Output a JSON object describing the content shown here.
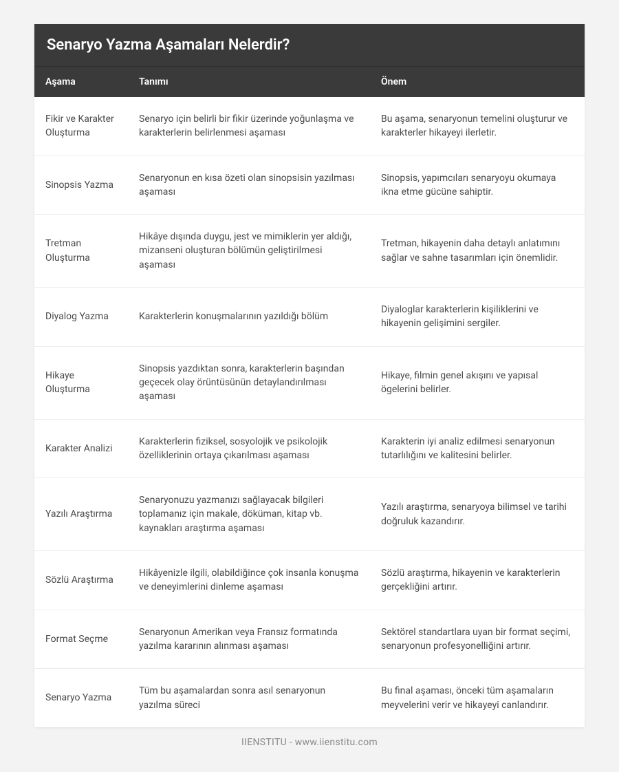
{
  "colors": {
    "page_bg": "#f3f3f3",
    "card_bg": "#ffffff",
    "header_bg": "#3a3a3a",
    "header_text": "#ffffff",
    "body_text": "#4a4a4a",
    "border": "#ececec",
    "footer_text": "#888888"
  },
  "typography": {
    "title_fontsize": 22,
    "header_fontsize": 14,
    "cell_fontsize": 14,
    "footer_fontsize": 14,
    "title_weight": 600,
    "header_weight": 600,
    "cell_weight": 400
  },
  "table": {
    "title": "Senaryo Yazma Aşamaları Nelerdir?",
    "type": "table",
    "columns": [
      {
        "key": "stage",
        "label": "Aşama",
        "width_pct": 17
      },
      {
        "key": "definition",
        "label": "Tanımı",
        "width_pct": 44
      },
      {
        "key": "importance",
        "label": "Önem",
        "width_pct": 39
      }
    ],
    "rows": [
      {
        "stage": "Fikir ve Karakter Oluşturma",
        "definition": "Senaryo için belirli bir fikir üzerinde yoğunlaşma ve karakterlerin belirlenmesi aşaması",
        "importance": "Bu aşama, senaryonun temelini oluşturur ve karakterler hikayeyi ilerletir."
      },
      {
        "stage": "Sinopsis Yazma",
        "definition": "Senaryonun en kısa özeti olan sinopsisin yazılması aşaması",
        "importance": "Sinopsis, yapımcıları senaryoyu okumaya ikna etme gücüne sahiptir."
      },
      {
        "stage": "Tretman Oluşturma",
        "definition": "Hikâye dışında duygu, jest ve mimiklerin yer aldığı, mizanseni oluşturan bölümün geliştirilmesi aşaması",
        "importance": "Tretman, hikayenin daha detaylı anlatımını sağlar ve sahne tasarımları için önemlidir."
      },
      {
        "stage": "Diyalog Yazma",
        "definition": "Karakterlerin konuşmalarının yazıldığı bölüm",
        "importance": "Diyaloglar karakterlerin kişiliklerini ve hikayenin gelişimini sergiler."
      },
      {
        "stage": "Hikaye Oluşturma",
        "definition": "Sinopsis yazdıktan sonra, karakterlerin başından geçecek olay örüntüsünün detaylandırılması aşaması",
        "importance": "Hikaye, filmin genel akışını ve yapısal ögelerini belirler."
      },
      {
        "stage": "Karakter Analizi",
        "definition": "Karakterlerin fiziksel, sosyolojik ve psikolojik özelliklerinin ortaya çıkarılması aşaması",
        "importance": "Karakterin iyi analiz edilmesi senaryonun tutarlılığını ve kalitesini belirler."
      },
      {
        "stage": "Yazılı Araştırma",
        "definition": "Senaryonuzu yazmanızı sağlayacak bilgileri toplamanız için makale, döküman, kitap vb. kaynakları araştırma aşaması",
        "importance": "Yazılı araştırma, senaryoya bilimsel ve tarihi doğruluk kazandırır."
      },
      {
        "stage": "Sözlü Araştırma",
        "definition": "Hikâyenizle ilgili, olabildiğince çok insanla konuşma ve deneyimlerini dinleme aşaması",
        "importance": "Sözlü araştırma, hikayenin ve karakterlerin gerçekliğini artırır."
      },
      {
        "stage": "Format Seçme",
        "definition": "Senaryonun Amerikan veya Fransız formatında yazılma kararının alınması aşaması",
        "importance": "Sektörel standartlara uyan bir format seçimi, senaryonun profesyonelliğini artırır."
      },
      {
        "stage": "Senaryo Yazma",
        "definition": "Tüm bu aşamalardan sonra asıl senaryonun yazılma süreci",
        "importance": "Bu final aşaması, önceki tüm aşamaların meyvelerini verir ve hikayeyi canlandırır."
      }
    ]
  },
  "footer": {
    "text": "IIENSTITU - www.iienstitu.com"
  }
}
